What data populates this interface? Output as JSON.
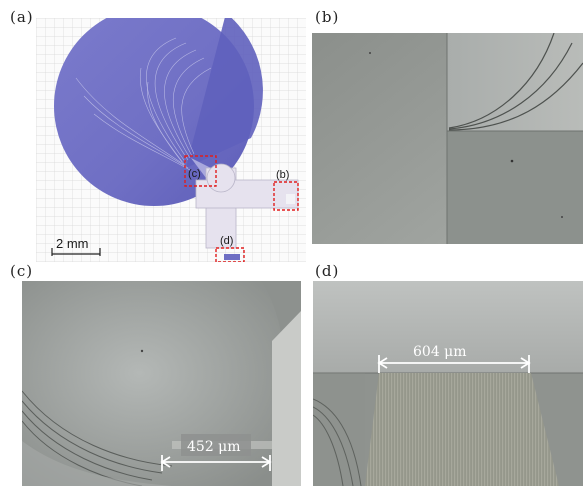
{
  "panels": {
    "a": {
      "label": "(a)",
      "scale_bar": "2 mm",
      "callouts": {
        "c": "(c)",
        "b": "(b)",
        "d": "(d)"
      }
    },
    "b": {
      "label": "(b)"
    },
    "c": {
      "label": "(c)",
      "measurement": "452 μm"
    },
    "d": {
      "label": "(d)",
      "measurement": "604 μm"
    }
  },
  "colors": {
    "device_blue": "#6f6fc4",
    "device_light": "#e6e2ee",
    "callout_red": "#e11d1d",
    "micro_light": "#b9bcba",
    "micro_dark": "#7d827f"
  }
}
